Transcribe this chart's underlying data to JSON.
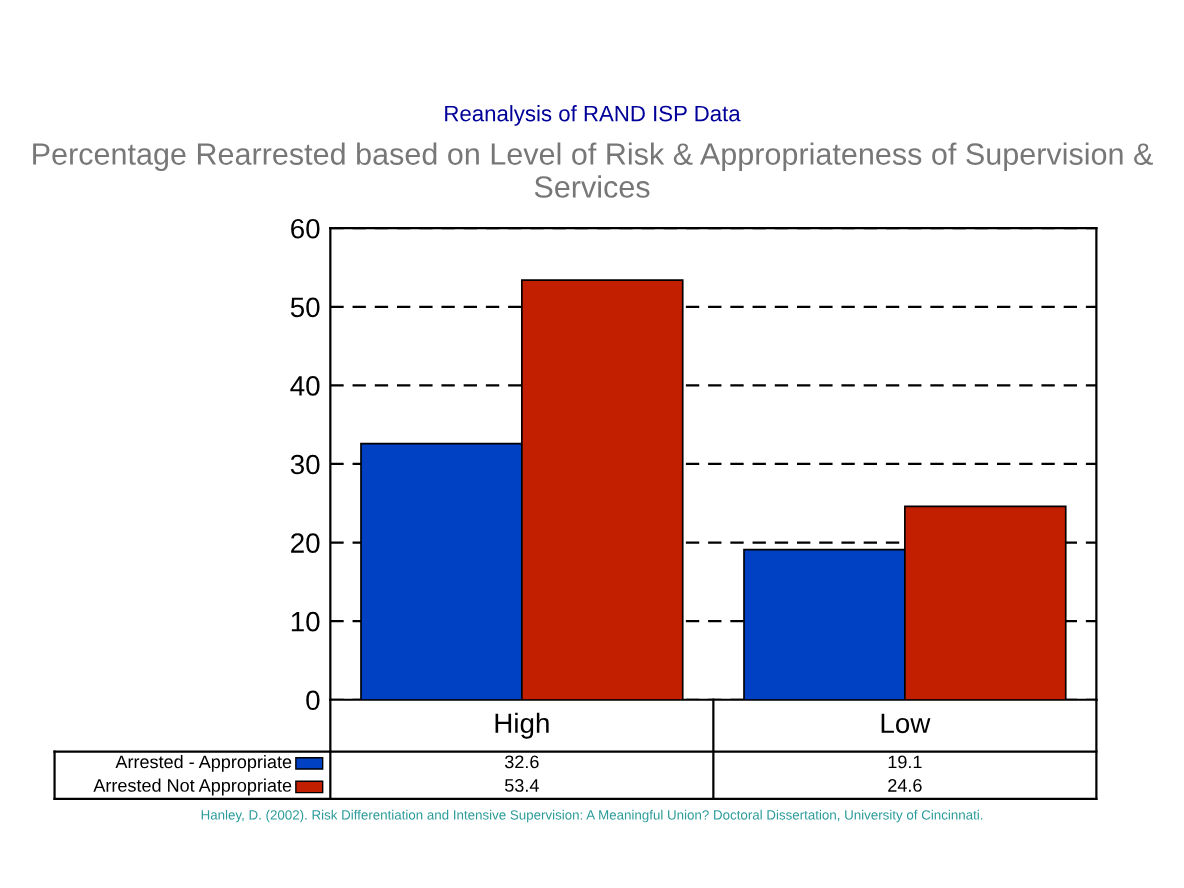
{
  "chart_data": {
    "type": "bar",
    "title": "Reanalysis of RAND ISP Data",
    "subtitle": "Percentage Rearrested based on Level of Risk & Appropriateness of Supervision & Services",
    "categories": [
      "High",
      "Low"
    ],
    "series": [
      {
        "name": "Arrested - Appropriate",
        "color": "#0041c4",
        "values": [
          32.6,
          19.1
        ]
      },
      {
        "name": "Arrested Not Appropriate",
        "color": "#c21e00",
        "values": [
          53.4,
          24.6
        ]
      }
    ],
    "ylim": [
      0,
      60
    ],
    "yticks": [
      0,
      10,
      20,
      30,
      40,
      50,
      60
    ],
    "grid": "y",
    "legend": "bottom",
    "data_labels": true,
    "annotations": [
      "Hanley, D. (2002). Risk Differentiation and Intensive Supervision: A Meaningful Union? Doctoral Dissertation, University of Cincinnati."
    ]
  }
}
